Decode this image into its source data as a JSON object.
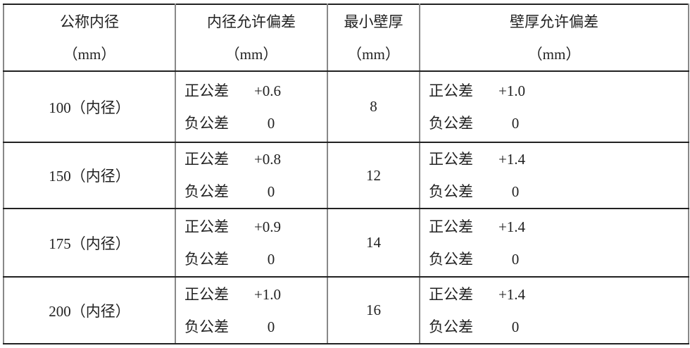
{
  "headers": [
    {
      "title": "公称内径",
      "unit": "（mm）"
    },
    {
      "title": "内径允许偏差",
      "unit": "（mm）"
    },
    {
      "title": "最小壁厚",
      "unit": "（mm）"
    },
    {
      "title": "壁厚允许偏差",
      "unit": "（mm）"
    }
  ],
  "rows": [
    {
      "diameter": "100（内径）",
      "inner_pos_label": "正公差",
      "inner_pos": "+0.6",
      "inner_neg_label": "负公差",
      "inner_neg": "0",
      "wall": "8",
      "wall_pos_label": "正公差",
      "wall_pos": "+1.0",
      "wall_neg_label": "负公差",
      "wall_neg": "0"
    },
    {
      "diameter": "150（内径）",
      "inner_pos_label": "正公差",
      "inner_pos": "+0.8",
      "inner_neg_label": "负公差",
      "inner_neg": "0",
      "wall": "12",
      "wall_pos_label": "正公差",
      "wall_pos": "+1.4",
      "wall_neg_label": "负公差",
      "wall_neg": "0"
    },
    {
      "diameter": "175（内径）",
      "inner_pos_label": "正公差",
      "inner_pos": "+0.9",
      "inner_neg_label": "负公差",
      "inner_neg": "0",
      "wall": "14",
      "wall_pos_label": "正公差",
      "wall_pos": "+1.4",
      "wall_neg_label": "负公差",
      "wall_neg": "0"
    },
    {
      "diameter": "200（内径）",
      "inner_pos_label": "正公差",
      "inner_pos": "+1.0",
      "inner_neg_label": "负公差",
      "inner_neg": "0",
      "wall": "16",
      "wall_pos_label": "正公差",
      "wall_pos": "+1.4",
      "wall_neg_label": "负公差",
      "wall_neg": "0"
    }
  ]
}
